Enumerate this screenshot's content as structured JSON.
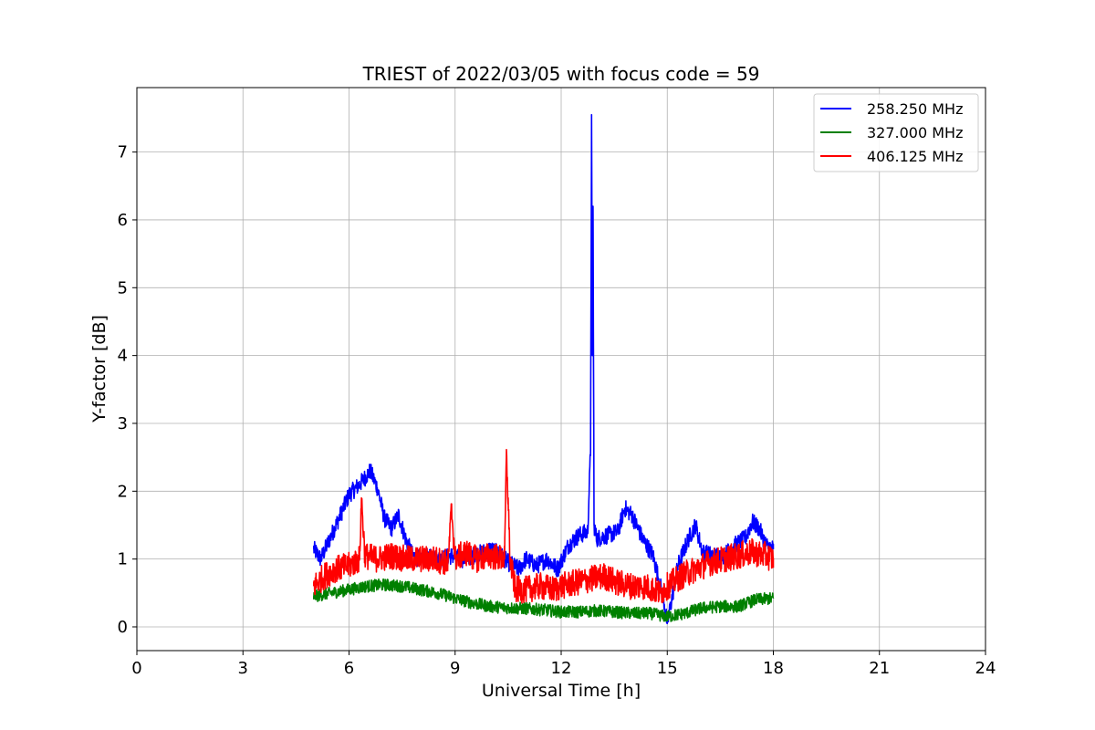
{
  "chart_data": {
    "type": "line",
    "title": "TRIEST of 2022/03/05 with focus code = 59",
    "xlabel": "Universal Time [h]",
    "ylabel": "Y-factor [dB]",
    "xlim": [
      0,
      24
    ],
    "ylim": [
      -0.35,
      7.95
    ],
    "xticks": [
      0,
      3,
      6,
      9,
      12,
      15,
      18,
      21,
      24
    ],
    "yticks": [
      0,
      1,
      2,
      3,
      4,
      5,
      6,
      7
    ],
    "grid": true,
    "legend_position": "top-right",
    "series": [
      {
        "name": "258.250 MHz",
        "color": "#0000ff",
        "noise": 0.13,
        "x": [
          5.0,
          5.2,
          5.5,
          5.8,
          6.0,
          6.3,
          6.6,
          6.8,
          7.0,
          7.2,
          7.4,
          7.6,
          7.8,
          8.0,
          8.3,
          8.6,
          8.9,
          9.2,
          9.5,
          9.8,
          10.0,
          10.3,
          10.5,
          10.8,
          11.0,
          11.3,
          11.6,
          11.9,
          12.2,
          12.5,
          12.75,
          12.83,
          12.86,
          12.88,
          12.9,
          12.93,
          13.0,
          13.3,
          13.6,
          13.8,
          14.0,
          14.3,
          14.6,
          14.9,
          15.0,
          15.3,
          15.6,
          15.8,
          16.0,
          16.3,
          16.6,
          16.9,
          17.2,
          17.4,
          17.6,
          17.8,
          18.0
        ],
        "y": [
          1.15,
          1.0,
          1.35,
          1.7,
          1.95,
          2.1,
          2.3,
          2.05,
          1.6,
          1.45,
          1.65,
          1.3,
          1.05,
          1.0,
          1.05,
          1.0,
          1.05,
          1.0,
          1.05,
          1.1,
          1.15,
          1.05,
          0.95,
          0.85,
          1.0,
          0.9,
          1.0,
          0.85,
          1.2,
          1.35,
          1.4,
          2.6,
          7.55,
          4.0,
          6.2,
          1.5,
          1.3,
          1.35,
          1.4,
          1.75,
          1.65,
          1.3,
          1.05,
          0.4,
          0.05,
          0.9,
          1.3,
          1.5,
          1.1,
          1.05,
          1.05,
          1.2,
          1.3,
          1.55,
          1.45,
          1.2,
          1.15
        ]
      },
      {
        "name": "327.000 MHz",
        "color": "#008000",
        "noise": 0.09,
        "x": [
          5.0,
          5.5,
          6.0,
          6.5,
          7.0,
          7.5,
          8.0,
          8.5,
          9.0,
          9.5,
          10.0,
          10.5,
          11.0,
          11.5,
          12.0,
          12.5,
          13.0,
          13.5,
          14.0,
          14.5,
          15.0,
          15.5,
          16.0,
          16.5,
          17.0,
          17.5,
          18.0
        ],
        "y": [
          0.45,
          0.5,
          0.55,
          0.6,
          0.62,
          0.6,
          0.55,
          0.5,
          0.42,
          0.35,
          0.3,
          0.28,
          0.27,
          0.25,
          0.22,
          0.22,
          0.24,
          0.22,
          0.2,
          0.2,
          0.15,
          0.2,
          0.28,
          0.3,
          0.3,
          0.4,
          0.42
        ]
      },
      {
        "name": "406.125 MHz",
        "color": "#ff0000",
        "noise": 0.2,
        "x": [
          5.0,
          5.3,
          5.6,
          6.0,
          6.3,
          6.35,
          6.45,
          6.8,
          7.2,
          7.6,
          8.0,
          8.4,
          8.8,
          8.9,
          9.0,
          9.3,
          9.6,
          10.0,
          10.4,
          10.45,
          10.5,
          10.55,
          10.7,
          11.0,
          11.4,
          11.8,
          12.0,
          12.4,
          12.8,
          13.2,
          13.6,
          14.0,
          14.4,
          14.8,
          15.0,
          15.4,
          15.8,
          16.2,
          16.6,
          17.0,
          17.4,
          17.8,
          18.0
        ],
        "y": [
          0.6,
          0.75,
          0.85,
          0.9,
          1.0,
          1.9,
          1.05,
          1.0,
          1.05,
          1.0,
          1.0,
          1.0,
          0.95,
          1.75,
          1.0,
          1.1,
          1.0,
          1.05,
          1.0,
          2.5,
          1.9,
          1.0,
          0.55,
          0.55,
          0.6,
          0.55,
          0.6,
          0.65,
          0.7,
          0.75,
          0.65,
          0.6,
          0.6,
          0.5,
          0.6,
          0.75,
          0.85,
          0.95,
          1.0,
          1.05,
          1.1,
          1.05,
          1.0
        ]
      }
    ]
  }
}
